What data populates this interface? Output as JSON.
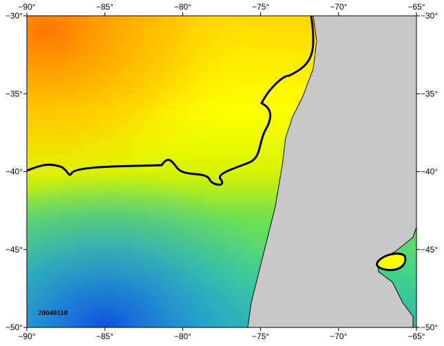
{
  "map": {
    "xlim": [
      -90,
      -65
    ],
    "ylim": [
      -30,
      -50
    ],
    "xticks": [
      {
        "value": -90,
        "label": "−90°"
      },
      {
        "value": -85,
        "label": "−85°"
      },
      {
        "value": -80,
        "label": "−80°"
      },
      {
        "value": -75,
        "label": "−75°"
      },
      {
        "value": -70,
        "label": "−70°"
      },
      {
        "value": -65,
        "label": "−65°"
      }
    ],
    "yticks": [
      {
        "value": -30,
        "label": "−30°"
      },
      {
        "value": -35,
        "label": "−35°"
      },
      {
        "value": -40,
        "label": "−40°"
      },
      {
        "value": -45,
        "label": "−45°"
      },
      {
        "value": -50,
        "label": "−50°"
      }
    ],
    "date_label": "20040110"
  }
}
